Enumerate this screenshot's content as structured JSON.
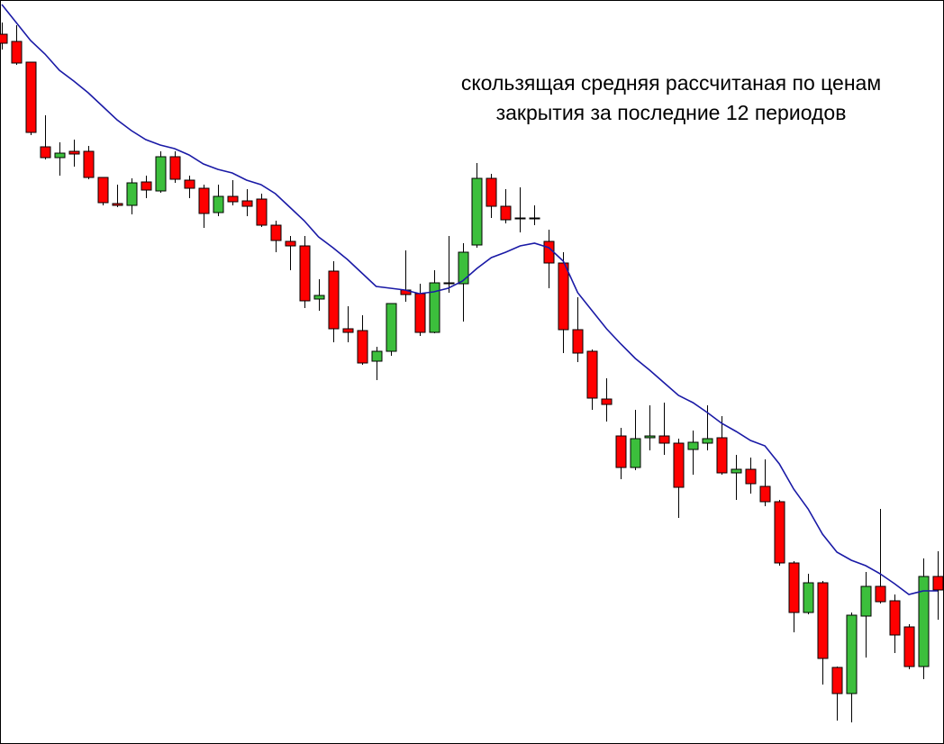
{
  "chart_data": {
    "type": "candlestick",
    "annotation": [
      "скользящая средняя рассчитаная по ценам",
      "закрытия за последние 12 периодов"
    ],
    "ylim": [
      0,
      826
    ],
    "up_color": "#3cbf3c",
    "down_color": "#ff0000",
    "open": [
      788,
      780,
      757,
      663,
      651,
      658,
      658,
      629,
      600,
      598,
      624,
      614,
      652,
      626,
      617,
      590,
      608,
      603,
      605,
      576,
      558,
      553,
      494,
      525,
      461,
      459,
      425,
      436,
      504,
      500,
      457,
      512,
      511,
      554,
      628,
      597,
      584,
      584,
      558,
      534,
      460,
      436,
      383,
      342,
      307,
      340,
      342,
      334,
      327,
      334,
      340,
      301,
      305,
      286,
      269,
      201,
      146,
      179,
      85,
      56,
      142,
      175,
      159,
      130,
      86,
      186
    ],
    "high": [
      801,
      798,
      757,
      698,
      668,
      671,
      664,
      629,
      621,
      628,
      631,
      658,
      658,
      631,
      621,
      621,
      626,
      616,
      611,
      581,
      564,
      564,
      516,
      536,
      486,
      476,
      441,
      489,
      548,
      511,
      526,
      564,
      556,
      645,
      633,
      616,
      618,
      598,
      571,
      546,
      496,
      438,
      406,
      351,
      371,
      376,
      379,
      339,
      348,
      376,
      364,
      321,
      318,
      316,
      271,
      203,
      189,
      181,
      86,
      146,
      191,
      261,
      166,
      133,
      206,
      214
    ],
    "low": [
      771,
      754,
      676,
      649,
      631,
      641,
      627,
      598,
      596,
      588,
      606,
      612,
      623,
      606,
      573,
      586,
      598,
      586,
      574,
      546,
      526,
      484,
      481,
      446,
      446,
      421,
      404,
      431,
      491,
      453,
      456,
      501,
      469,
      551,
      584,
      578,
      568,
      576,
      506,
      434,
      424,
      371,
      358,
      294,
      304,
      326,
      321,
      251,
      299,
      326,
      299,
      271,
      278,
      264,
      198,
      124,
      144,
      66,
      26,
      24,
      96,
      156,
      101,
      83,
      72,
      138
    ],
    "close": [
      778,
      756,
      679,
      651,
      656,
      655,
      629,
      601,
      598,
      623,
      615,
      652,
      627,
      617,
      589,
      608,
      602,
      597,
      576,
      559,
      553,
      492,
      498,
      461,
      457,
      423,
      436,
      489,
      499,
      457,
      512,
      511,
      546,
      628,
      597,
      582,
      583,
      583,
      534,
      460,
      434,
      384,
      377,
      307,
      339,
      342,
      334,
      285,
      335,
      339,
      301,
      305,
      289,
      269,
      201,
      146,
      179,
      95,
      56,
      143,
      175,
      158,
      121,
      86,
      186,
      171
    ],
    "ma": {
      "color": "#1a1aa6",
      "values": [
        821,
        801,
        781,
        766,
        748,
        736,
        723,
        708,
        693,
        681,
        671,
        665,
        661,
        654,
        644,
        638,
        634,
        626,
        621,
        611,
        596,
        581,
        563,
        551,
        538,
        523,
        508,
        506,
        504,
        500,
        502,
        506,
        514,
        528,
        540,
        546,
        553,
        556,
        551,
        536,
        501,
        481,
        461,
        444,
        428,
        415,
        401,
        387,
        379,
        368,
        356,
        347,
        337,
        331,
        311,
        283,
        261,
        233,
        213,
        204,
        198,
        189,
        178,
        166,
        170,
        170
      ]
    }
  }
}
